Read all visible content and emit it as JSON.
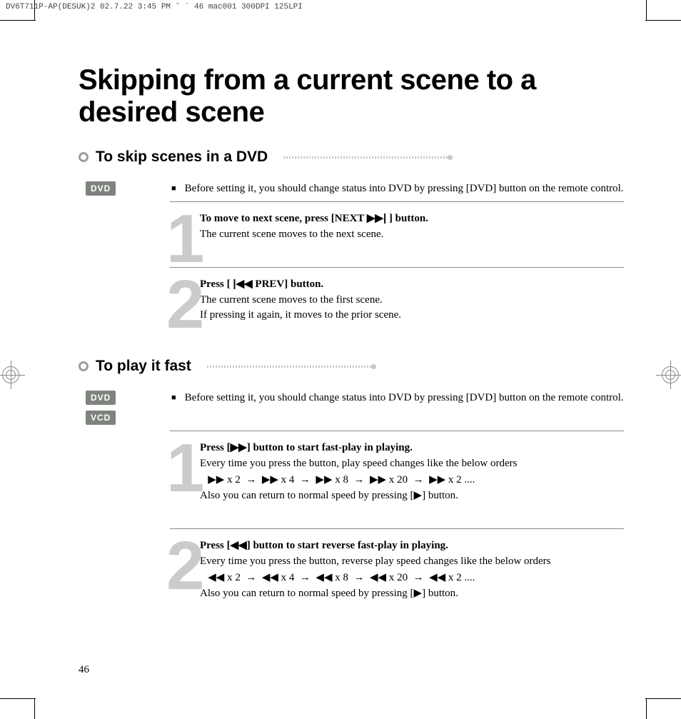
{
  "print_header": "DV6T711P-AP(DESUK)2  02.7.22 3:45 PM  ˘  ` 46   mac001  300DPI 125LPI",
  "title": "Skipping from a current scene to a desired scene",
  "page_number": "46",
  "glyphs": {
    "next": "▶▶|",
    "prev": "|◀◀",
    "ffwd": "▶▶",
    "rew": "◀◀",
    "play": "▶",
    "arrow": "→",
    "square": "■"
  },
  "sections": [
    {
      "heading": "To skip scenes in a DVD",
      "badges": [
        "DVD"
      ],
      "intro": "Before setting it, you should change status into DVD by pressing [DVD] button on the remote control.",
      "steps": [
        {
          "num": "1",
          "bold_pre": "To move to next scene, press [NEXT ",
          "bold_glyph": "next",
          "bold_post": " ] button.",
          "lines": [
            "The current scene moves to the next scene."
          ]
        },
        {
          "num": "2",
          "bold_pre": "Press [ ",
          "bold_glyph": "prev",
          "bold_post": " PREV] button.",
          "lines": [
            "The current scene moves to the first scene.",
            "If pressing it again, it moves to the prior scene."
          ]
        }
      ]
    },
    {
      "heading": "To play it fast",
      "badges": [
        "DVD",
        "VCD"
      ],
      "intro": "Before setting it, you should change status into DVD by pressing [DVD] button on the remote control.",
      "steps": [
        {
          "num": "1",
          "bold_pre": "Press [",
          "bold_glyph": "ffwd",
          "bold_post": "] button to start fast-play in playing.",
          "lines": [
            "Every time you press the button, play speed changes like the below orders"
          ],
          "speed_glyph": "ffwd",
          "speeds": [
            "x 2",
            "x 4",
            "x 8",
            "x 20",
            "x 2 ...."
          ],
          "return_pre": "Also you can return to normal speed by pressing [",
          "return_glyph": "play",
          "return_post": "] button."
        },
        {
          "num": "2",
          "bold_pre": "Press [",
          "bold_glyph": "rew",
          "bold_post": "] button to start reverse fast-play in playing.",
          "lines": [
            "Every time you press the button, reverse play speed changes like the below orders"
          ],
          "speed_glyph": "rew",
          "speeds": [
            "x 2",
            "x 4",
            "x 8",
            "x 20",
            "x 2 ...."
          ],
          "return_pre": "Also you can return to normal speed by pressing [",
          "return_glyph": "play",
          "return_post": "] button."
        }
      ]
    }
  ]
}
